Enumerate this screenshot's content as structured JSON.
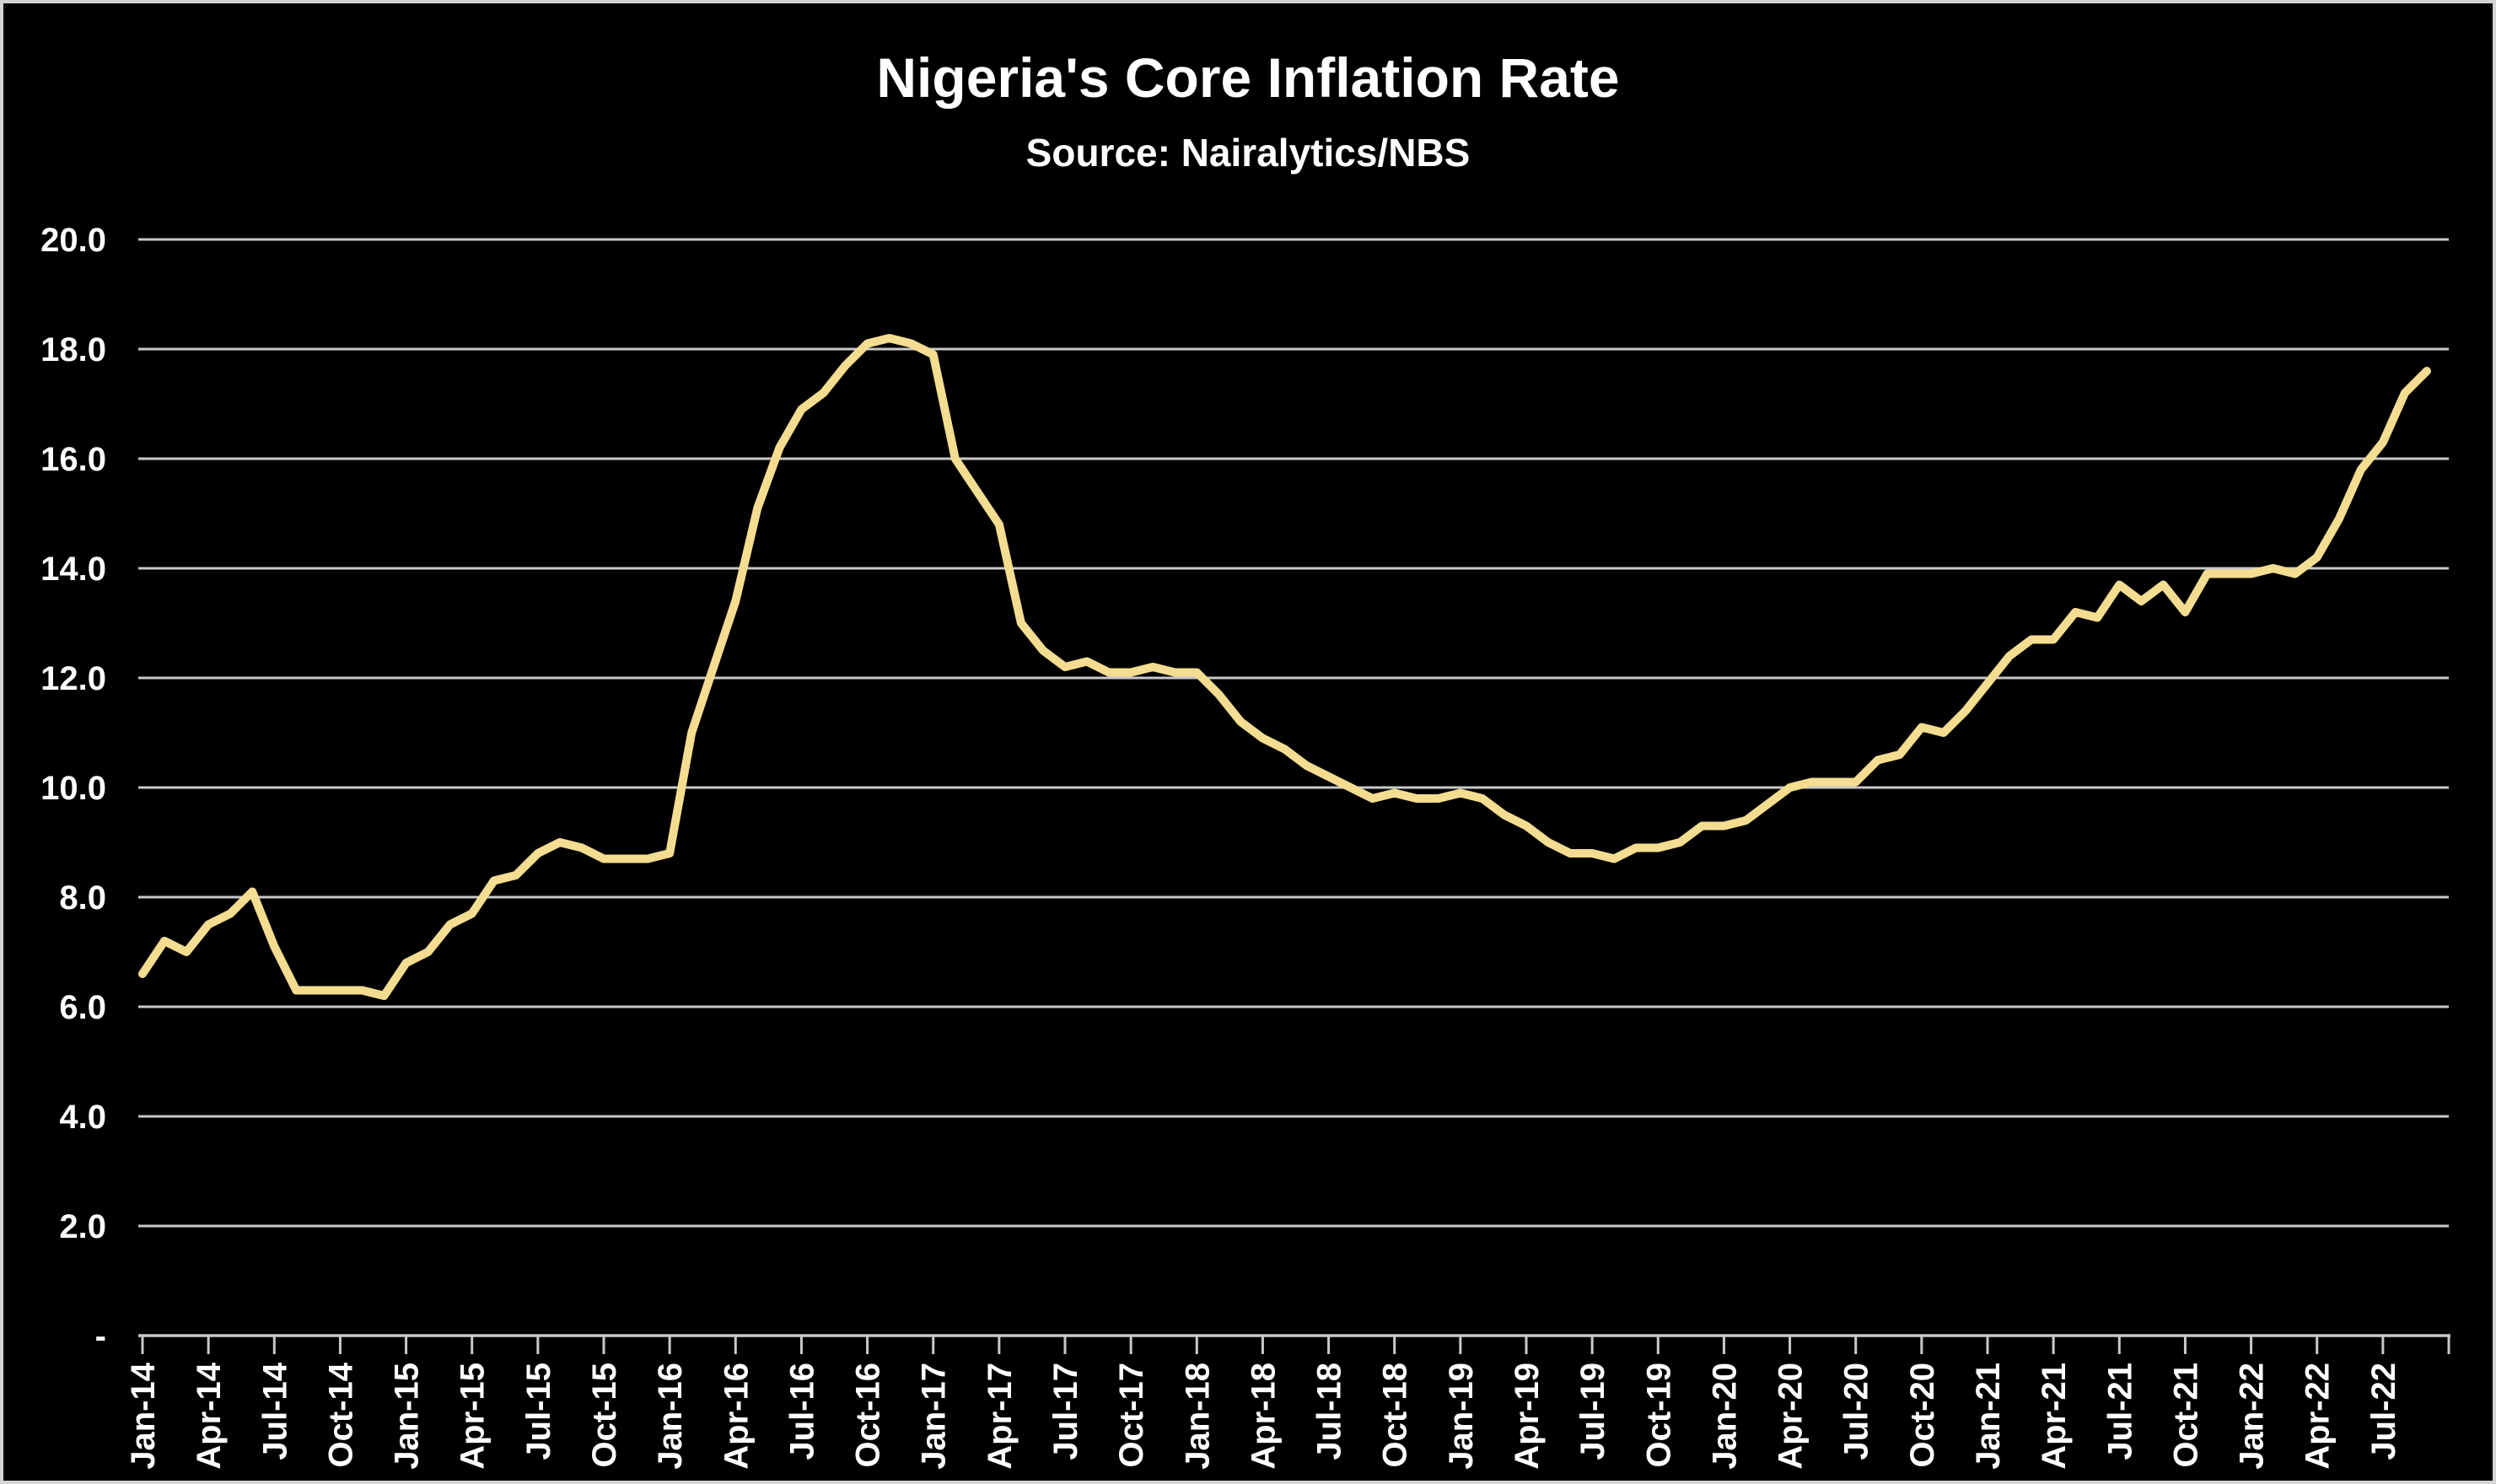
{
  "title": "Nigeria's Core Inflation Rate",
  "subtitle": "Source: Nairalytics/NBS",
  "colors": {
    "background": "#000000",
    "line": "#f4dc90",
    "gridline": "#c9c9c9",
    "frame": "#d4d4d4",
    "text": "#ffffff"
  },
  "chart_data": {
    "type": "line",
    "title": "Nigeria's Core Inflation Rate",
    "subtitle": "Source: Nairalytics/NBS",
    "legend": "none",
    "grid": "horizontal",
    "ylim": [
      0,
      20
    ],
    "y_tick_step": 2,
    "y_tick_labels": [
      "20.0",
      "18.0",
      "16.0",
      "14.0",
      "12.0",
      "10.0",
      "8.0",
      "6.0",
      "4.0",
      "2.0",
      "-"
    ],
    "y_tick_values": [
      20,
      18,
      16,
      14,
      12,
      10,
      8,
      6,
      4,
      2,
      0
    ],
    "x_tick_interval_months": 3,
    "x_axis_extra_end_tick": true,
    "x": [
      "Jan-14",
      "Feb-14",
      "Mar-14",
      "Apr-14",
      "May-14",
      "Jun-14",
      "Jul-14",
      "Aug-14",
      "Sep-14",
      "Oct-14",
      "Nov-14",
      "Dec-14",
      "Jan-15",
      "Feb-15",
      "Mar-15",
      "Apr-15",
      "May-15",
      "Jun-15",
      "Jul-15",
      "Aug-15",
      "Sep-15",
      "Oct-15",
      "Nov-15",
      "Dec-15",
      "Jan-16",
      "Feb-16",
      "Mar-16",
      "Apr-16",
      "May-16",
      "Jun-16",
      "Jul-16",
      "Aug-16",
      "Sep-16",
      "Oct-16",
      "Nov-16",
      "Dec-16",
      "Jan-17",
      "Feb-17",
      "Mar-17",
      "Apr-17",
      "May-17",
      "Jun-17",
      "Jul-17",
      "Aug-17",
      "Sep-17",
      "Oct-17",
      "Nov-17",
      "Dec-17",
      "Jan-18",
      "Feb-18",
      "Mar-18",
      "Apr-18",
      "May-18",
      "Jun-18",
      "Jul-18",
      "Aug-18",
      "Sep-18",
      "Oct-18",
      "Nov-18",
      "Dec-18",
      "Jan-19",
      "Feb-19",
      "Mar-19",
      "Apr-19",
      "May-19",
      "Jun-19",
      "Jul-19",
      "Aug-19",
      "Sep-19",
      "Oct-19",
      "Nov-19",
      "Dec-19",
      "Jan-20",
      "Feb-20",
      "Mar-20",
      "Apr-20",
      "May-20",
      "Jun-20",
      "Jul-20",
      "Aug-20",
      "Sep-20",
      "Oct-20",
      "Nov-20",
      "Dec-20",
      "Jan-21",
      "Feb-21",
      "Mar-21",
      "Apr-21",
      "May-21",
      "Jun-21",
      "Jul-21",
      "Aug-21",
      "Sep-21",
      "Oct-21",
      "Nov-21",
      "Dec-21",
      "Jan-22",
      "Feb-22",
      "Mar-22",
      "Apr-22",
      "May-22",
      "Jun-22",
      "Jul-22",
      "Aug-22",
      "Sep-22"
    ],
    "series": [
      {
        "name": "Core inflation rate (%)",
        "values": [
          6.6,
          7.2,
          7.0,
          7.5,
          7.7,
          8.1,
          7.1,
          6.3,
          6.3,
          6.3,
          6.3,
          6.2,
          6.8,
          7.0,
          7.5,
          7.7,
          8.3,
          8.4,
          8.8,
          9.0,
          8.9,
          8.7,
          8.7,
          8.7,
          8.8,
          11.0,
          12.2,
          13.4,
          15.1,
          16.2,
          16.9,
          17.2,
          17.7,
          18.1,
          18.2,
          18.1,
          17.9,
          16.0,
          15.4,
          14.8,
          13.0,
          12.5,
          12.2,
          12.3,
          12.1,
          12.1,
          12.2,
          12.1,
          12.1,
          11.7,
          11.2,
          10.9,
          10.7,
          10.4,
          10.2,
          10.0,
          9.8,
          9.9,
          9.8,
          9.8,
          9.9,
          9.8,
          9.5,
          9.3,
          9.0,
          8.8,
          8.8,
          8.7,
          8.9,
          8.9,
          9.0,
          9.3,
          9.3,
          9.4,
          9.7,
          10.0,
          10.1,
          10.1,
          10.1,
          10.5,
          10.6,
          11.1,
          11.0,
          11.4,
          11.9,
          12.4,
          12.7,
          12.7,
          13.2,
          13.1,
          13.7,
          13.4,
          13.7,
          13.2,
          13.9,
          13.9,
          13.9,
          14.0,
          13.9,
          14.2,
          14.9,
          15.8,
          16.3,
          17.2,
          17.6
        ]
      }
    ]
  }
}
